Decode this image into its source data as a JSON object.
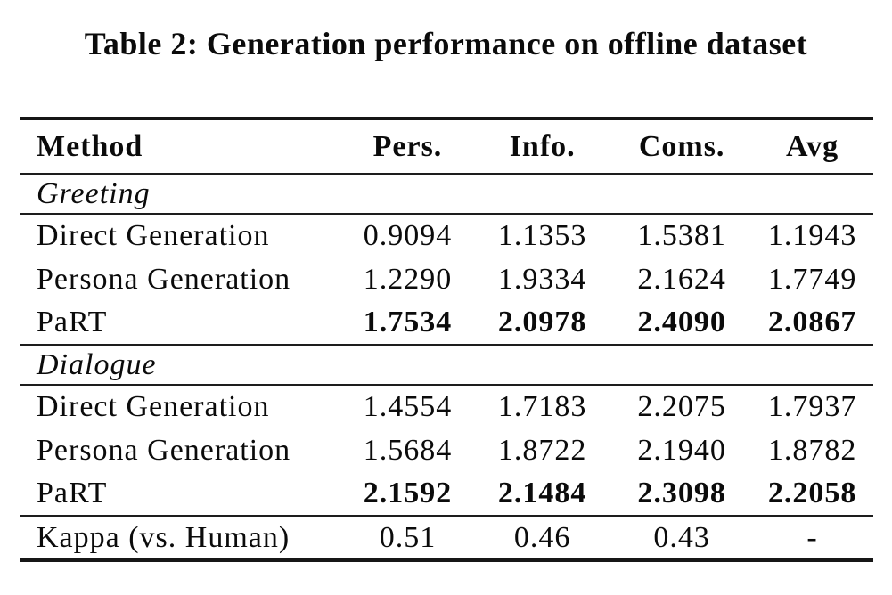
{
  "doc": {
    "caption": "Table 2: Generation performance on offline dataset"
  },
  "colors": {
    "background": "#ffffff",
    "text": "#0b0b0b",
    "rule": "#161616"
  },
  "table": {
    "columns": [
      "Method",
      "Pers.",
      "Info.",
      "Coms.",
      "Avg"
    ],
    "sections": [
      {
        "label": "Greeting",
        "rows": [
          {
            "method": "Direct Generation",
            "bold": false,
            "values": [
              "0.9094",
              "1.1353",
              "1.5381",
              "1.1943"
            ]
          },
          {
            "method": "Persona Generation",
            "bold": false,
            "values": [
              "1.2290",
              "1.9334",
              "2.1624",
              "1.7749"
            ]
          },
          {
            "method": "PaRT",
            "bold": true,
            "values": [
              "1.7534",
              "2.0978",
              "2.4090",
              "2.0867"
            ]
          }
        ]
      },
      {
        "label": "Dialogue",
        "rows": [
          {
            "method": "Direct Generation",
            "bold": false,
            "values": [
              "1.4554",
              "1.7183",
              "2.2075",
              "1.7937"
            ]
          },
          {
            "method": "Persona Generation",
            "bold": false,
            "values": [
              "1.5684",
              "1.8722",
              "2.1940",
              "1.8782"
            ]
          },
          {
            "method": "PaRT",
            "bold": true,
            "values": [
              "2.1592",
              "2.1484",
              "2.3098",
              "2.2058"
            ]
          }
        ]
      }
    ],
    "footer": {
      "method": "Kappa (vs. Human)",
      "values": [
        "0.51",
        "0.46",
        "0.43",
        "-"
      ]
    }
  }
}
